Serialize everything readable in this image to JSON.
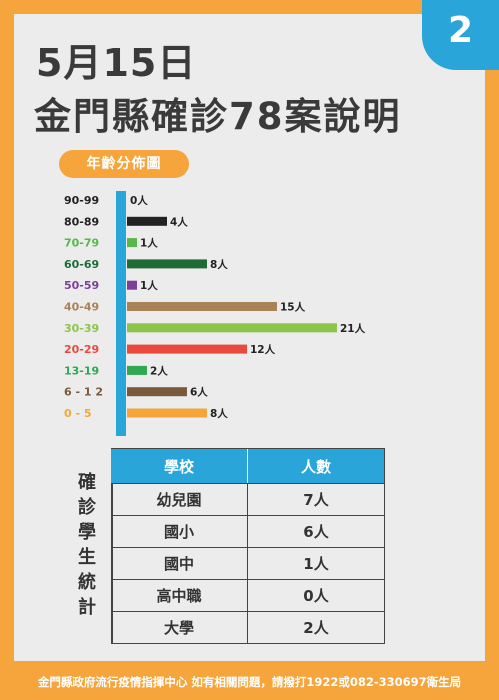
{
  "badge": {
    "number": "2"
  },
  "header": {
    "date": "5月15日",
    "headline": "金門縣確診78案說明"
  },
  "chart_data": {
    "type": "bar",
    "orientation": "horizontal",
    "title": "年齡分佈圖",
    "categories": [
      "90-99",
      "80-89",
      "70-79",
      "60-69",
      "50-59",
      "40-49",
      "30-39",
      "20-29",
      "13-19",
      "6 - 1 2",
      "0  -  5"
    ],
    "values": [
      0,
      4,
      1,
      8,
      1,
      15,
      21,
      12,
      2,
      6,
      8
    ],
    "value_labels": [
      "0人",
      "4人",
      "1人",
      "8人",
      "1人",
      "15人",
      "21人",
      "12人",
      "2人",
      "6人",
      "8人"
    ],
    "colors": [
      "#4a4a4a",
      "#222222",
      "#55b848",
      "#1e6b35",
      "#7d3f98",
      "#a98357",
      "#8cc54a",
      "#e84a3d",
      "#2fa84f",
      "#7a5a3c",
      "#f5a53c"
    ],
    "axis_color": "#2aa5d9",
    "xlim": [
      0,
      21
    ],
    "grid": false
  },
  "stats": {
    "label_chars": [
      "確",
      "診",
      "學",
      "生",
      "統",
      "計"
    ],
    "headers": [
      "學校",
      "人數"
    ],
    "rows": [
      {
        "school": "幼兒園",
        "count": "7人"
      },
      {
        "school": "國小",
        "count": "6人"
      },
      {
        "school": "國中",
        "count": "1人"
      },
      {
        "school": "高中職",
        "count": "0人"
      },
      {
        "school": "大學",
        "count": "2人"
      }
    ]
  },
  "footer": {
    "text": "金門縣政府流行疫情指揮中心  如有相關問題，請撥打1922或082-330697衛生局"
  }
}
